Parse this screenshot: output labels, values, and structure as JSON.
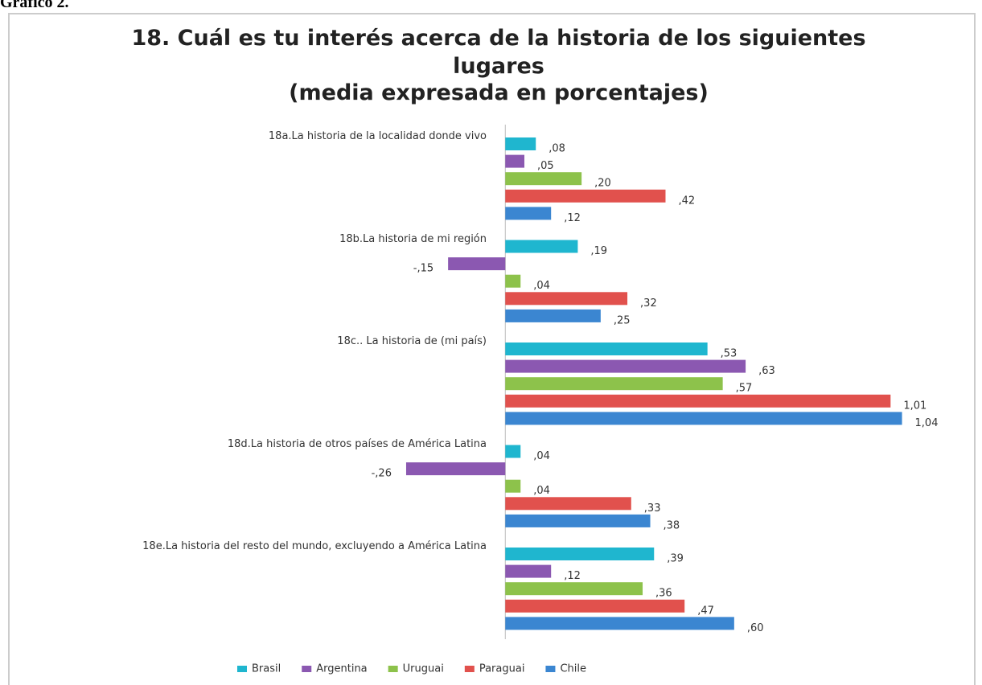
{
  "caption": "Gráfico 2.",
  "chart_data": {
    "type": "hbar",
    "title": "18. Cuál es tu interés acerca de la historia de los siguientes lugares",
    "subtitle": "(media expresada en porcentajes)",
    "categories": [
      "18a.La  historia de la localidad donde vivo",
      "18b.La  historia de mi región",
      "18c.. La historia de (mi país)",
      "18d.La historia de otros países de América Latina",
      "18e.La historia del resto del mundo, excluyendo a América Latina"
    ],
    "series": [
      {
        "name": "Brasil",
        "color": "#1fb6cf",
        "values": [
          0.08,
          0.19,
          0.53,
          0.04,
          0.39
        ],
        "value_labels": [
          ",08",
          ",19",
          ",53",
          ",04",
          ",39"
        ]
      },
      {
        "name": "Argentina",
        "color": "#8b58b1",
        "values": [
          0.05,
          -0.15,
          0.63,
          -0.26,
          0.12
        ],
        "value_labels": [
          ",05",
          "-,15",
          ",63",
          "-,26",
          ",12"
        ]
      },
      {
        "name": "Uruguai",
        "color": "#8dc24b",
        "values": [
          0.2,
          0.04,
          0.57,
          0.04,
          0.36
        ],
        "value_labels": [
          ",20",
          ",04",
          ",57",
          ",04",
          ",36"
        ]
      },
      {
        "name": "Paraguai",
        "color": "#e1514d",
        "values": [
          0.42,
          0.32,
          1.01,
          0.33,
          0.47
        ],
        "value_labels": [
          ",42",
          ",32",
          "1,01",
          ",33",
          ",47"
        ]
      },
      {
        "name": "Chile",
        "color": "#3b86d1",
        "values": [
          0.12,
          0.25,
          1.04,
          0.38,
          0.6
        ],
        "value_labels": [
          ",12",
          ",25",
          "1,04",
          ",38",
          ",60"
        ]
      }
    ],
    "xlim": [
      -0.3,
      1.1
    ],
    "legend": "bottom"
  }
}
